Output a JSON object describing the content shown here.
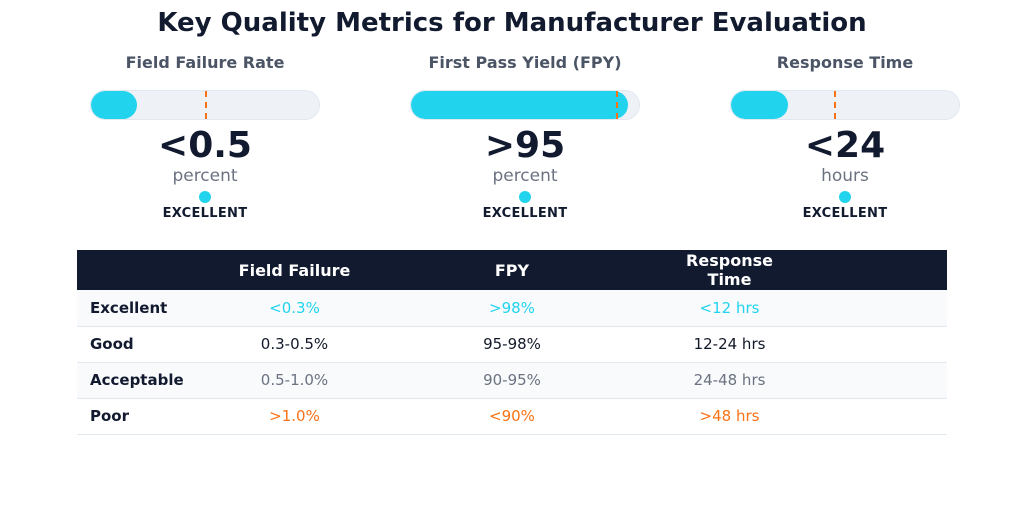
{
  "title": "Key Quality Metrics for Manufacturer Evaluation",
  "colors": {
    "accent": "#22d3ee",
    "target": "#f97316",
    "dark": "#111a2e",
    "muted": "#6b7280"
  },
  "kpis": [
    {
      "label": "Field Failure Rate",
      "value": "<0.5",
      "unit": "percent",
      "status": "EXCELLENT",
      "fill_fraction": 0.2,
      "target_fraction": 0.5
    },
    {
      "label": "First Pass Yield (FPY)",
      "value": ">95",
      "unit": "percent",
      "status": "EXCELLENT",
      "fill_fraction": 0.95,
      "target_fraction": 0.9
    },
    {
      "label": "Response Time",
      "value": "<24",
      "unit": "hours",
      "status": "EXCELLENT",
      "fill_fraction": 0.25,
      "target_fraction": 0.45
    }
  ],
  "chart_data": {
    "type": "table",
    "columns": [
      "",
      "Field Failure",
      "FPY",
      "Response Time"
    ],
    "rows": [
      {
        "tier": "Excellent",
        "cells": [
          "<0.3%",
          ">98%",
          "<12 hrs"
        ],
        "color": "#22d3ee"
      },
      {
        "tier": "Good",
        "cells": [
          "0.3-0.5%",
          "95-98%",
          "12-24 hrs"
        ],
        "color": "#111827"
      },
      {
        "tier": "Acceptable",
        "cells": [
          "0.5-1.0%",
          "90-95%",
          "24-48 hrs"
        ],
        "color": "#6b7280"
      },
      {
        "tier": "Poor",
        "cells": [
          ">1.0%",
          "<90%",
          ">48 hrs"
        ],
        "color": "#f97316"
      }
    ]
  }
}
